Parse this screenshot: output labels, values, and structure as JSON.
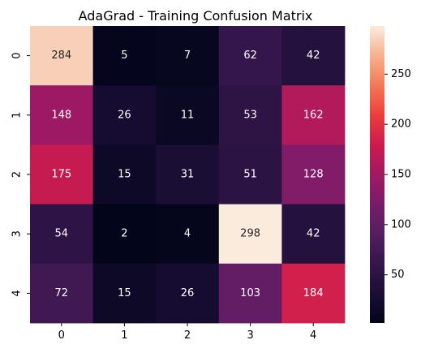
{
  "chart_data": {
    "type": "heatmap",
    "title": "AdaGrad - Training Confusion Matrix",
    "xlabel": "",
    "ylabel": "",
    "x_categories": [
      "0",
      "1",
      "2",
      "3",
      "4"
    ],
    "y_categories": [
      "0",
      "1",
      "2",
      "3",
      "4"
    ],
    "values": [
      [
        284,
        5,
        7,
        62,
        42
      ],
      [
        148,
        26,
        11,
        53,
        162
      ],
      [
        175,
        15,
        31,
        51,
        128
      ],
      [
        54,
        2,
        4,
        298,
        42
      ],
      [
        72,
        15,
        26,
        103,
        184
      ]
    ],
    "colorscale": "rocket",
    "colorbar": {
      "range": [
        2,
        298
      ],
      "ticks": [
        50,
        100,
        150,
        200,
        250
      ]
    },
    "grid": false
  }
}
